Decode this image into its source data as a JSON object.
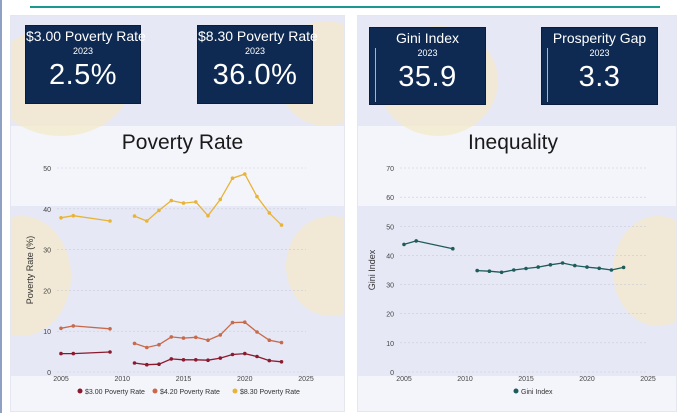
{
  "cards": [
    {
      "title": "$3.00 Poverty Rate",
      "year": "2023",
      "value": "2.5%"
    },
    {
      "title": "$8.30 Poverty Rate",
      "year": "2023",
      "value": "36.0%"
    },
    {
      "title": "Gini Index",
      "year": "2023",
      "value": "35.9"
    },
    {
      "title": "Prosperity Gap",
      "year": "2023",
      "value": "3.3"
    }
  ],
  "colors": {
    "card_bg": "#0f2a52",
    "s300": "#8b1a2e",
    "s420": "#c86a4a",
    "s830": "#e8b437",
    "gini": "#1d5c5a",
    "accent_line": "#1a9a8f"
  },
  "chart_data": [
    {
      "type": "line",
      "title": "Poverty Rate",
      "xlabel": "",
      "ylabel": "Poverty Rate (%)",
      "xlim": [
        2004.5,
        2025.5
      ],
      "ylim": [
        0,
        50
      ],
      "xticks": [
        2005,
        2010,
        2015,
        2020,
        2025
      ],
      "yticks": [
        0,
        10,
        20,
        30,
        40,
        50
      ],
      "legend_position": "bottom",
      "series": [
        {
          "name": "$3.00 Poverty Rate",
          "color": "#8b1a2e",
          "segments": [
            [
              [
                2005,
                4.5
              ],
              [
                2006,
                4.5
              ],
              [
                2009,
                4.9
              ]
            ],
            [
              [
                2011,
                2.2
              ],
              [
                2012,
                1.8
              ],
              [
                2013,
                1.9
              ],
              [
                2014,
                3.2
              ],
              [
                2015,
                3.0
              ],
              [
                2016,
                3.0
              ],
              [
                2017,
                2.9
              ],
              [
                2018,
                3.4
              ],
              [
                2019,
                4.3
              ],
              [
                2020,
                4.5
              ],
              [
                2021,
                3.8
              ],
              [
                2022,
                2.8
              ],
              [
                2023,
                2.5
              ]
            ]
          ]
        },
        {
          "name": "$4.20 Poverty Rate",
          "color": "#c86a4a",
          "segments": [
            [
              [
                2005,
                10.7
              ],
              [
                2006,
                11.3
              ],
              [
                2009,
                10.6
              ]
            ],
            [
              [
                2011,
                7.0
              ],
              [
                2012,
                6.0
              ],
              [
                2013,
                6.7
              ],
              [
                2014,
                8.6
              ],
              [
                2015,
                8.3
              ],
              [
                2016,
                8.5
              ],
              [
                2017,
                7.8
              ],
              [
                2018,
                9.1
              ],
              [
                2019,
                12.1
              ],
              [
                2020,
                12.2
              ],
              [
                2021,
                9.8
              ],
              [
                2022,
                7.8
              ],
              [
                2023,
                7.2
              ]
            ]
          ]
        },
        {
          "name": "$8.30 Poverty Rate",
          "color": "#e8b437",
          "segments": [
            [
              [
                2005,
                37.8
              ],
              [
                2006,
                38.3
              ],
              [
                2009,
                37.0
              ]
            ],
            [
              [
                2011,
                38.2
              ],
              [
                2012,
                37.0
              ],
              [
                2013,
                39.6
              ],
              [
                2014,
                42.0
              ],
              [
                2015,
                41.4
              ],
              [
                2016,
                41.7
              ],
              [
                2017,
                38.3
              ],
              [
                2018,
                42.3
              ],
              [
                2019,
                47.5
              ],
              [
                2020,
                48.5
              ],
              [
                2021,
                43.0
              ],
              [
                2022,
                39.0
              ],
              [
                2023,
                36.0
              ]
            ]
          ]
        }
      ]
    },
    {
      "type": "line",
      "title": "Inequality",
      "xlabel": "",
      "ylabel": "Gini Index",
      "xlim": [
        2004.5,
        2025.5
      ],
      "ylim": [
        0,
        70
      ],
      "xticks": [
        2005,
        2010,
        2015,
        2020,
        2025
      ],
      "yticks": [
        0,
        10,
        20,
        30,
        40,
        50,
        60,
        70
      ],
      "legend_position": "bottom",
      "series": [
        {
          "name": "Gini Index",
          "color": "#1d5c5a",
          "segments": [
            [
              [
                2005,
                43.8
              ],
              [
                2006,
                45.0
              ],
              [
                2009,
                42.3
              ]
            ],
            [
              [
                2011,
                34.8
              ],
              [
                2012,
                34.6
              ],
              [
                2013,
                34.2
              ],
              [
                2014,
                35.0
              ],
              [
                2015,
                35.5
              ],
              [
                2016,
                36.0
              ],
              [
                2017,
                36.8
              ],
              [
                2018,
                37.4
              ],
              [
                2019,
                36.5
              ],
              [
                2020,
                36.0
              ],
              [
                2021,
                35.6
              ],
              [
                2022,
                35.0
              ],
              [
                2023,
                35.9
              ]
            ]
          ]
        }
      ]
    }
  ]
}
